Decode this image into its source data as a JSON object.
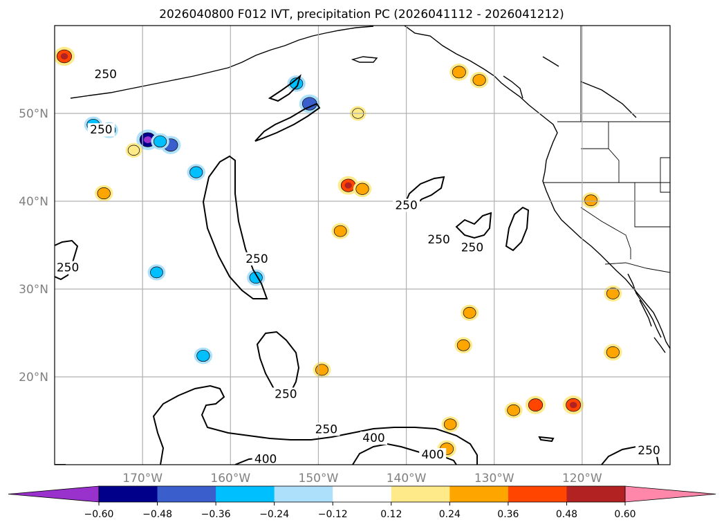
{
  "chart_data": {
    "type": "map-contour",
    "title": "2026040800 F012 IVT, precipitation PC (2026041112 - 2026041212)",
    "projection": "PlateCarree",
    "extent": {
      "lon": [
        -180,
        -110
      ],
      "lat": [
        10,
        60
      ]
    },
    "gridlines": true,
    "lon_ticks": [
      {
        "value": -170,
        "label": "170°W"
      },
      {
        "value": -160,
        "label": "160°W"
      },
      {
        "value": -150,
        "label": "150°W"
      },
      {
        "value": -140,
        "label": "140°W"
      },
      {
        "value": -130,
        "label": "130°W"
      },
      {
        "value": -120,
        "label": "120°W"
      }
    ],
    "lat_ticks": [
      {
        "value": 50,
        "label": "50°N"
      },
      {
        "value": 40,
        "label": "40°N"
      },
      {
        "value": 30,
        "label": "30°N"
      },
      {
        "value": 20,
        "label": "20°N"
      }
    ],
    "colorbar": {
      "orientation": "horizontal",
      "extend": "both",
      "levels": [
        -0.6,
        -0.48,
        -0.36,
        -0.24,
        -0.12,
        0.12,
        0.24,
        0.36,
        0.48,
        0.6
      ],
      "tick_labels": [
        "−0.60",
        "−0.48",
        "−0.36",
        "−0.24",
        "−0.12",
        "0.12",
        "0.24",
        "0.36",
        "0.48",
        "0.60"
      ],
      "under_color": "#9932CC",
      "over_color": "#FF88AA",
      "colors": [
        "#00008B",
        "#3A5FCD",
        "#00BFFF",
        "#ADE0FA",
        "#FFFFFF",
        "#FFEA8A",
        "#FFA500",
        "#FF4500",
        "#B22222"
      ]
    },
    "ivt_contour_levels": [
      250,
      400
    ],
    "ivt_contour_labels": [
      {
        "text": "250",
        "lon": -174.2,
        "lat": 54.0
      },
      {
        "text": "250",
        "lon": -174.7,
        "lat": 47.7
      },
      {
        "text": "250",
        "lon": -178.5,
        "lat": 32.0
      },
      {
        "text": "250",
        "lon": -157.0,
        "lat": 33.0
      },
      {
        "text": "250",
        "lon": -140.0,
        "lat": 39.1
      },
      {
        "text": "250",
        "lon": -136.3,
        "lat": 35.2
      },
      {
        "text": "250",
        "lon": -132.5,
        "lat": 34.3
      },
      {
        "text": "250",
        "lon": -153.7,
        "lat": 17.6
      },
      {
        "text": "250",
        "lon": -149.1,
        "lat": 13.6
      },
      {
        "text": "400",
        "lon": -143.7,
        "lat": 12.6
      },
      {
        "text": "400",
        "lon": -137.0,
        "lat": 10.7
      },
      {
        "text": "400",
        "lon": -156.0,
        "lat": 10.2
      },
      {
        "text": "250",
        "lon": -112.4,
        "lat": 11.2
      }
    ],
    "precip_pc_cells": [
      {
        "lon": -178.9,
        "lat": 56.5,
        "value": 0.44
      },
      {
        "lon": -173.8,
        "lat": 48.1,
        "value": -0.28
      },
      {
        "lon": -169.4,
        "lat": 47.0,
        "value": -0.54
      },
      {
        "lon": -166.8,
        "lat": 46.4,
        "value": -0.4
      },
      {
        "lon": -168.0,
        "lat": 46.8,
        "value": -0.3
      },
      {
        "lon": -163.9,
        "lat": 43.3,
        "value": -0.3
      },
      {
        "lon": -175.6,
        "lat": 48.7,
        "value": -0.3
      },
      {
        "lon": -152.5,
        "lat": 53.4,
        "value": -0.3
      },
      {
        "lon": -151.0,
        "lat": 51.1,
        "value": -0.42
      },
      {
        "lon": -145.5,
        "lat": 50.0,
        "value": 0.2
      },
      {
        "lon": -174.4,
        "lat": 40.9,
        "value": 0.3
      },
      {
        "lon": -146.6,
        "lat": 41.8,
        "value": 0.42
      },
      {
        "lon": -145.0,
        "lat": 41.4,
        "value": 0.3
      },
      {
        "lon": -147.5,
        "lat": 36.6,
        "value": 0.28
      },
      {
        "lon": -171.0,
        "lat": 45.8,
        "value": 0.2
      },
      {
        "lon": -168.4,
        "lat": 31.9,
        "value": -0.28
      },
      {
        "lon": -157.1,
        "lat": 31.3,
        "value": -0.3
      },
      {
        "lon": -163.1,
        "lat": 22.4,
        "value": -0.3
      },
      {
        "lon": -149.6,
        "lat": 20.8,
        "value": 0.28
      },
      {
        "lon": -125.3,
        "lat": 16.8,
        "value": 0.4
      },
      {
        "lon": -127.8,
        "lat": 16.2,
        "value": 0.28
      },
      {
        "lon": -121.0,
        "lat": 16.8,
        "value": 0.44
      },
      {
        "lon": -119.0,
        "lat": 40.1,
        "value": 0.28
      },
      {
        "lon": -116.5,
        "lat": 29.5,
        "value": 0.28
      },
      {
        "lon": -116.5,
        "lat": 22.8,
        "value": 0.3
      },
      {
        "lon": -134.0,
        "lat": 54.7,
        "value": 0.34
      },
      {
        "lon": -131.7,
        "lat": 53.8,
        "value": 0.3
      },
      {
        "lon": -135.0,
        "lat": 14.6,
        "value": 0.26
      },
      {
        "lon": -135.4,
        "lat": 11.8,
        "value": 0.34
      },
      {
        "lon": -133.5,
        "lat": 23.6,
        "value": 0.28
      },
      {
        "lon": -132.8,
        "lat": 27.3,
        "value": 0.28
      }
    ]
  }
}
